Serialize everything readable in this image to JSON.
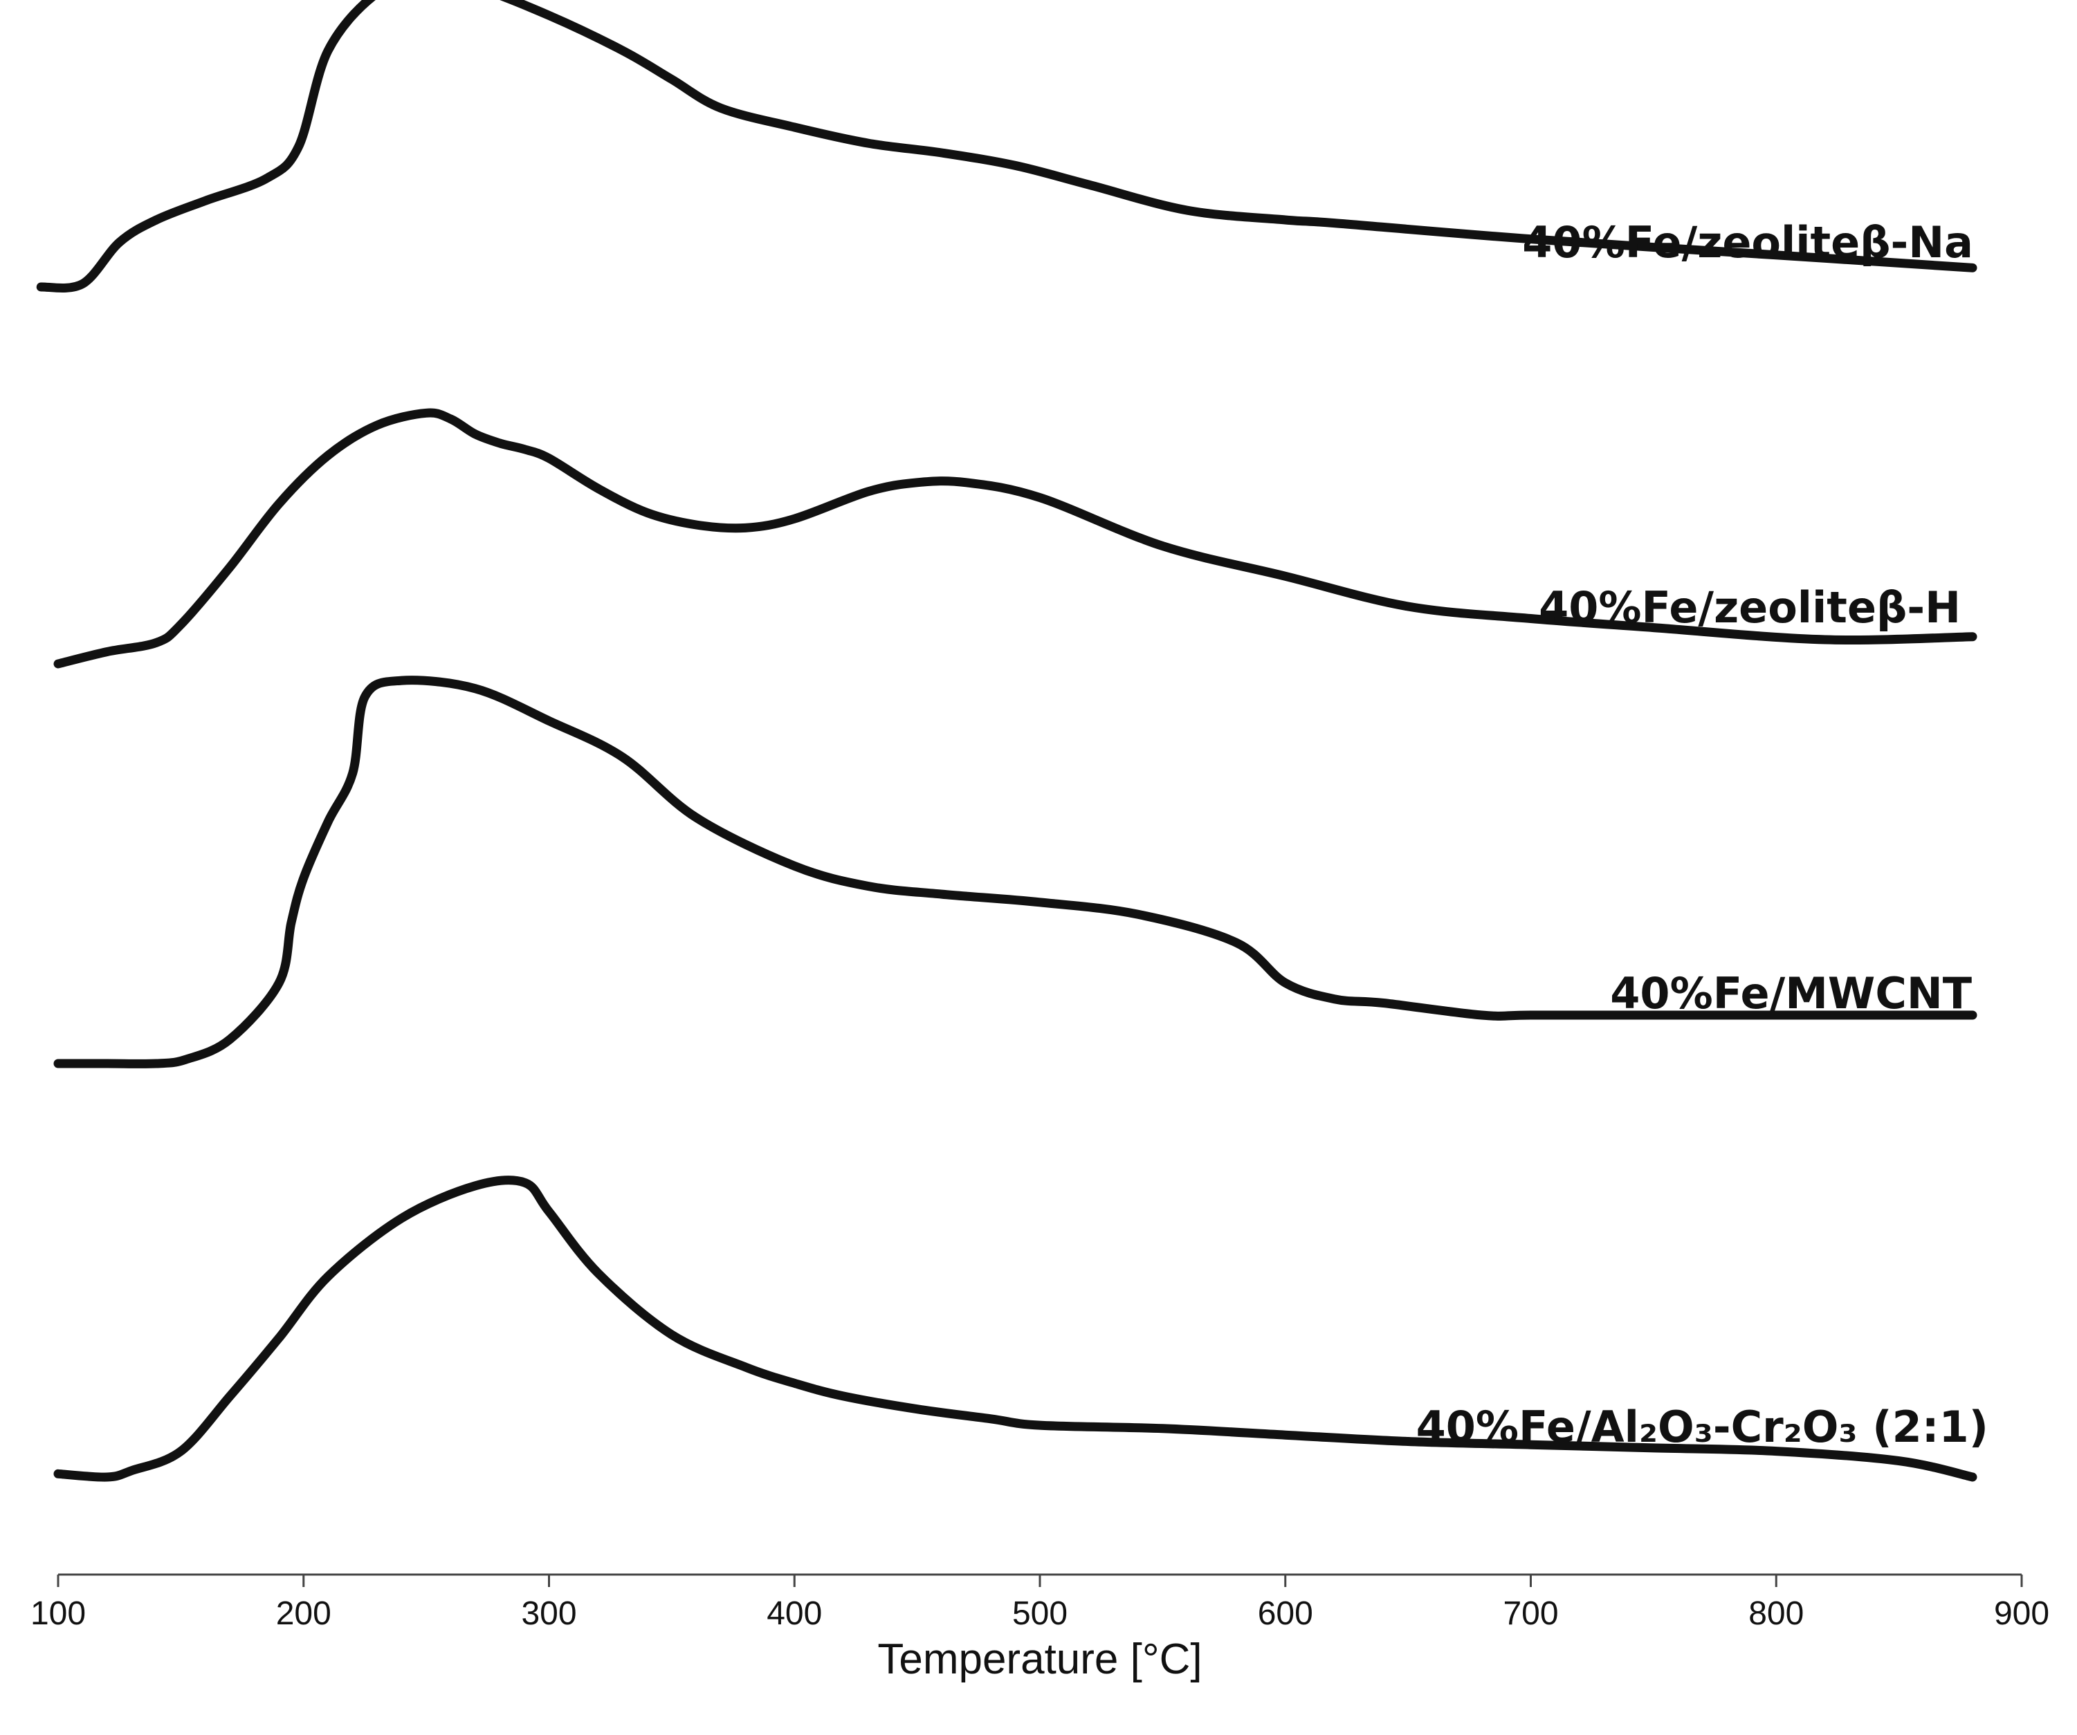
{
  "chart_data": {
    "type": "line",
    "xlabel": "Temperature [°C]",
    "ylabel": "",
    "xlim": [
      100,
      900
    ],
    "xticks": [
      "100",
      "200",
      "300",
      "400",
      "500",
      "600",
      "700",
      "800",
      "900"
    ],
    "grid": false,
    "y_axis_shown": false,
    "series": [
      {
        "name": "40%Fe/zeoliteβ-Na",
        "x": [
          93,
          110,
          125,
          140,
          160,
          185,
          198,
          210,
          230,
          250,
          270,
          300,
          330,
          350,
          370,
          400,
          430,
          460,
          490,
          520,
          560,
          600,
          620,
          700,
          800,
          880
        ],
        "y": [
          0.0,
          0.01,
          0.14,
          0.21,
          0.27,
          0.34,
          0.44,
          0.74,
          0.92,
          0.97,
          0.94,
          0.85,
          0.74,
          0.65,
          0.56,
          0.5,
          0.45,
          0.42,
          0.38,
          0.32,
          0.24,
          0.21,
          0.2,
          0.15,
          0.1,
          0.06
        ]
      },
      {
        "name": "40%Fe/zeoliteβ-H",
        "x": [
          100,
          120,
          140,
          150,
          170,
          190,
          210,
          230,
          250,
          260,
          270,
          280,
          290,
          300,
          320,
          340,
          360,
          380,
          400,
          430,
          450,
          470,
          500,
          550,
          600,
          650,
          700,
          750,
          820,
          880
        ],
        "y": [
          0.0,
          0.04,
          0.07,
          0.13,
          0.32,
          0.53,
          0.69,
          0.79,
          0.83,
          0.81,
          0.76,
          0.73,
          0.71,
          0.68,
          0.58,
          0.5,
          0.46,
          0.45,
          0.48,
          0.57,
          0.6,
          0.6,
          0.55,
          0.39,
          0.29,
          0.19,
          0.15,
          0.12,
          0.08,
          0.09
        ]
      },
      {
        "name": "40%Fe/MWCNT",
        "x": [
          100,
          120,
          140,
          152,
          170,
          190,
          195,
          200,
          210,
          220,
          225,
          240,
          270,
          300,
          330,
          360,
          400,
          430,
          460,
          500,
          540,
          580,
          600,
          620,
          640,
          680,
          700,
          750,
          800,
          880
        ],
        "y": [
          0.0,
          0.0,
          0.0,
          0.01,
          0.06,
          0.2,
          0.35,
          0.46,
          0.6,
          0.72,
          0.91,
          0.95,
          0.93,
          0.85,
          0.76,
          0.61,
          0.49,
          0.44,
          0.42,
          0.4,
          0.37,
          0.3,
          0.2,
          0.16,
          0.15,
          0.12,
          0.12,
          0.12,
          0.12,
          0.12
        ]
      },
      {
        "name": "40%Fe/Al₂O₃-Cr₂O₃ (2:1)",
        "x": [
          100,
          120,
          130,
          150,
          170,
          190,
          210,
          240,
          270,
          290,
          300,
          320,
          350,
          380,
          400,
          420,
          450,
          480,
          500,
          550,
          600,
          650,
          700,
          750,
          800,
          850,
          880
        ],
        "y": [
          0.01,
          0.0,
          0.02,
          0.08,
          0.25,
          0.43,
          0.62,
          0.8,
          0.9,
          0.91,
          0.82,
          0.63,
          0.44,
          0.34,
          0.29,
          0.25,
          0.21,
          0.18,
          0.16,
          0.15,
          0.13,
          0.11,
          0.1,
          0.09,
          0.08,
          0.05,
          0.0
        ]
      }
    ]
  }
}
